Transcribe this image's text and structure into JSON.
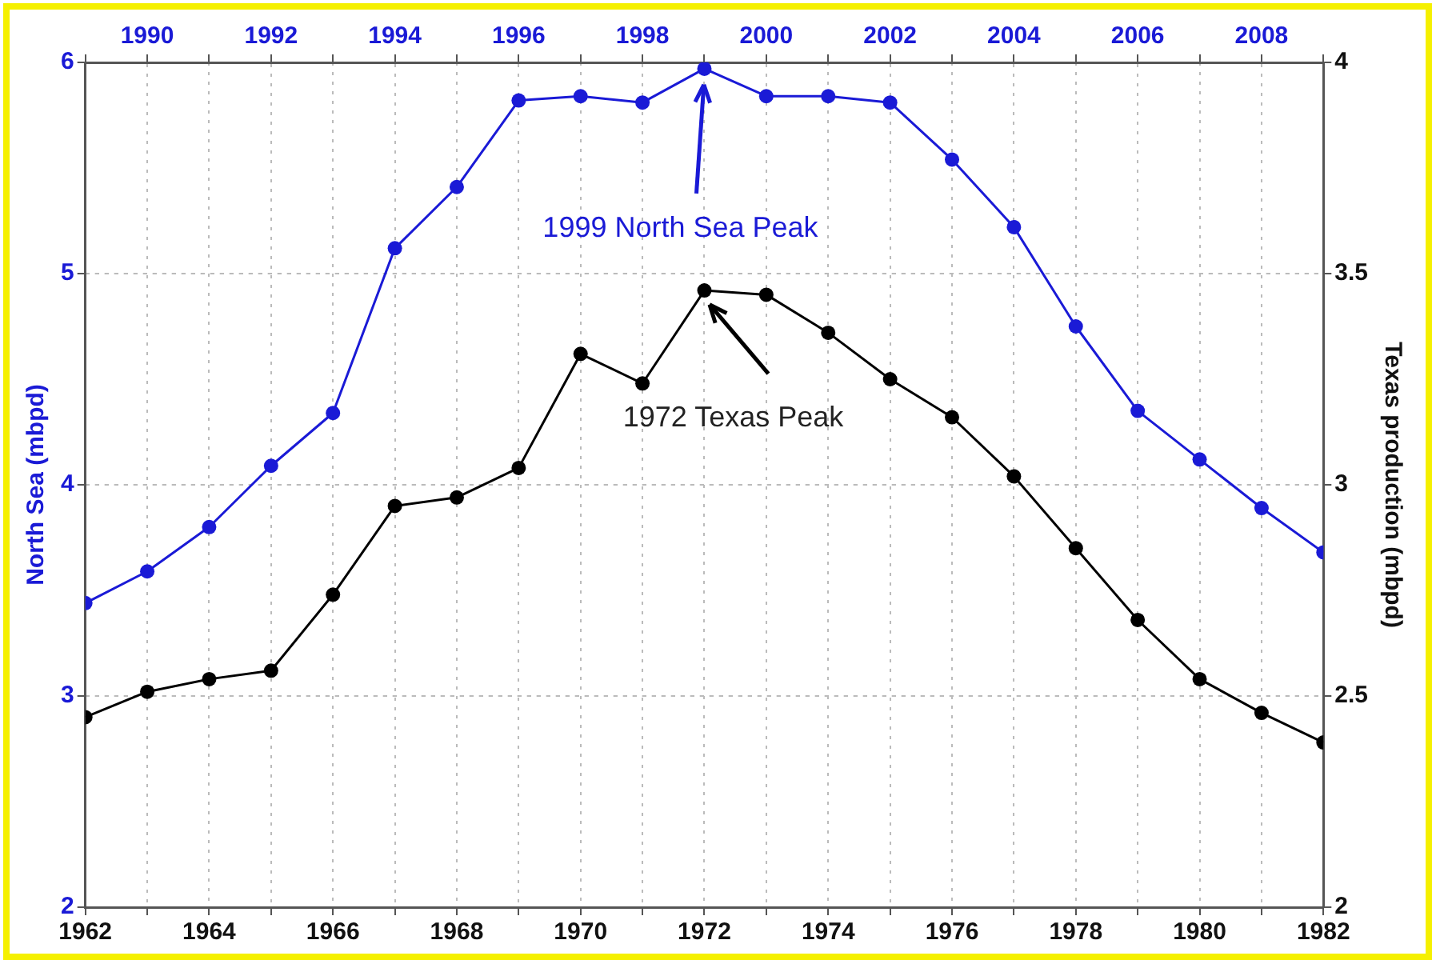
{
  "chart_data": {
    "type": "line",
    "ylabel": "North Sea (mbpd)",
    "y2label": "Texas production (mbpd)",
    "xlim": [
      1962,
      1982
    ],
    "xticks": [
      1962,
      {
        "value": 1963,
        "label": null
      },
      1964,
      {
        "value": 1965,
        "label": null
      },
      1966,
      {
        "value": 1967,
        "label": null
      },
      1968,
      {
        "value": 1969,
        "label": null
      },
      1970,
      {
        "value": 1971,
        "label": null
      },
      1972,
      {
        "value": 1973,
        "label": null
      },
      1974,
      {
        "value": 1975,
        "label": null
      },
      1976,
      {
        "value": 1977,
        "label": null
      },
      1978,
      {
        "value": 1979,
        "label": null
      },
      1980,
      {
        "value": 1981,
        "label": null
      },
      1982
    ],
    "x2lim": [
      1989,
      2009
    ],
    "x2ticks": [
      {
        "value": 1989,
        "label": null
      },
      1990,
      {
        "value": 1991,
        "label": null
      },
      1992,
      {
        "value": 1993,
        "label": null
      },
      1994,
      {
        "value": 1995,
        "label": null
      },
      1996,
      {
        "value": 1997,
        "label": null
      },
      1998,
      {
        "value": 1999,
        "label": null
      },
      2000,
      {
        "value": 2001,
        "label": null
      },
      2002,
      {
        "value": 2003,
        "label": null
      },
      2004,
      {
        "value": 2005,
        "label": null
      },
      2006,
      {
        "value": 2007,
        "label": null
      },
      2008,
      {
        "value": 2009,
        "label": null
      }
    ],
    "ylim": [
      2,
      6
    ],
    "yticks": [
      2,
      3,
      4,
      5,
      6
    ],
    "y2lim": [
      2,
      4
    ],
    "y2ticks": [
      2,
      2.5,
      3,
      3.5,
      4
    ],
    "grid": true,
    "marker": "circle",
    "line_style": "solid",
    "series": [
      {
        "color": "#1a1ad6",
        "axis": "x2",
        "x": [
          1989,
          1990,
          1991,
          1992,
          1993,
          1994,
          1995,
          1996,
          1997,
          1998,
          1999,
          2000,
          2001,
          2002,
          2003,
          2004,
          2005,
          2006,
          2007,
          2008,
          2009
        ],
        "values": [
          3.44,
          3.59,
          3.8,
          4.09,
          4.34,
          5.12,
          5.41,
          5.82,
          5.84,
          5.81,
          5.97,
          5.84,
          5.84,
          5.81,
          5.54,
          5.22,
          4.75,
          4.35,
          4.12,
          3.89,
          3.68
        ]
      },
      {
        "color": "#000000",
        "axis": "y2",
        "x": [
          1962,
          1963,
          1964,
          1965,
          1966,
          1967,
          1968,
          1969,
          1970,
          1971,
          1972,
          1973,
          1974,
          1975,
          1976,
          1977,
          1978,
          1979,
          1980,
          1981,
          1982
        ],
        "values": [
          2.45,
          2.51,
          2.54,
          2.56,
          2.74,
          2.95,
          2.97,
          3.04,
          3.31,
          3.24,
          3.46,
          3.45,
          3.36,
          3.25,
          3.16,
          3.02,
          2.85,
          2.68,
          2.54,
          2.46,
          2.39
        ]
      }
    ],
    "annotations": [
      "1999 North Sea Peak",
      "1972 Texas Peak"
    ]
  }
}
